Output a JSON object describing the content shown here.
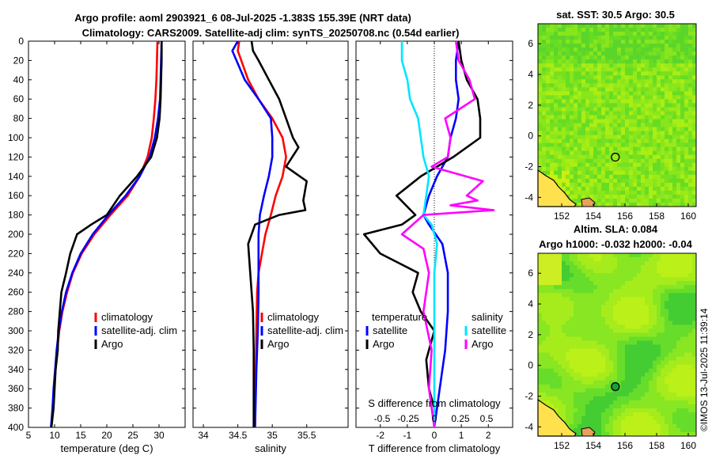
{
  "title_line1": "Argo profile: aoml 2903921_6 08-Jul-2025 -1.383S 155.39E (NRT data)",
  "title_line2": "Climatology: CARS2009. Satellite-adj clim: synTS_20250708.nc (0.54d earlier)",
  "depth_ticks": [
    "0",
    "20",
    "40",
    "60",
    "80",
    "100",
    "120",
    "140",
    "160",
    "180",
    "200",
    "220",
    "240",
    "260",
    "280",
    "300",
    "320",
    "340",
    "360",
    "380",
    "400"
  ],
  "colors": {
    "climatology": "#ff0000",
    "satellite": "#0000ff",
    "argo": "#000000",
    "sat_sal": "#00e5ff",
    "argo_sal": "#ff00ff"
  },
  "chart_data": [
    {
      "type": "line",
      "name": "temperature",
      "xlabel": "temperature (deg C)",
      "xlim": [
        5,
        35
      ],
      "ylim": [
        0,
        400
      ],
      "y_reversed": true,
      "xticks": [
        "5",
        "10",
        "15",
        "20",
        "25",
        "30"
      ],
      "legend": [
        "climatology",
        "satellite-adj. clim",
        "Argo"
      ],
      "series": [
        {
          "name": "climatology",
          "key": "climatology",
          "points": [
            [
              29.7,
              0
            ],
            [
              29.6,
              20
            ],
            [
              29.5,
              40
            ],
            [
              29.3,
              60
            ],
            [
              29.0,
              80
            ],
            [
              28.6,
              100
            ],
            [
              27.8,
              120
            ],
            [
              26.3,
              140
            ],
            [
              24.0,
              160
            ],
            [
              20.7,
              180
            ],
            [
              17.6,
              200
            ],
            [
              15.2,
              220
            ],
            [
              13.5,
              240
            ],
            [
              12.4,
              260
            ],
            [
              11.5,
              280
            ],
            [
              10.9,
              300
            ],
            [
              10.5,
              320
            ],
            [
              10.2,
              340
            ],
            [
              9.9,
              360
            ],
            [
              9.6,
              380
            ],
            [
              9.4,
              400
            ]
          ]
        },
        {
          "name": "satellite-adj. clim",
          "key": "satellite",
          "points": [
            [
              30.5,
              0
            ],
            [
              30.4,
              20
            ],
            [
              30.3,
              40
            ],
            [
              30.2,
              60
            ],
            [
              29.8,
              80
            ],
            [
              29.2,
              100
            ],
            [
              28.2,
              120
            ],
            [
              26.3,
              140
            ],
            [
              23.6,
              160
            ],
            [
              20.3,
              180
            ],
            [
              17.3,
              200
            ],
            [
              15.0,
              220
            ],
            [
              13.4,
              240
            ],
            [
              12.2,
              260
            ],
            [
              11.4,
              280
            ],
            [
              10.8,
              300
            ],
            [
              10.4,
              320
            ],
            [
              10.1,
              340
            ],
            [
              9.8,
              360
            ],
            [
              9.6,
              380
            ],
            [
              9.3,
              400
            ]
          ]
        },
        {
          "name": "Argo",
          "key": "argo",
          "points": [
            [
              30.5,
              0
            ],
            [
              30.5,
              20
            ],
            [
              30.4,
              40
            ],
            [
              30.3,
              60
            ],
            [
              30.1,
              80
            ],
            [
              29.6,
              100
            ],
            [
              28.5,
              120
            ],
            [
              25.8,
              140
            ],
            [
              22.5,
              160
            ],
            [
              20.0,
              180
            ],
            [
              17.0,
              190
            ],
            [
              14.3,
              200
            ],
            [
              13.0,
              220
            ],
            [
              12.2,
              240
            ],
            [
              11.3,
              260
            ],
            [
              11.0,
              280
            ],
            [
              10.7,
              300
            ],
            [
              10.6,
              320
            ],
            [
              10.2,
              340
            ],
            [
              10.0,
              360
            ],
            [
              9.8,
              380
            ],
            [
              9.4,
              400
            ]
          ]
        }
      ]
    },
    {
      "type": "line",
      "name": "salinity",
      "xlabel": "salinity",
      "xlim": [
        33.85,
        36.1
      ],
      "ylim": [
        0,
        400
      ],
      "y_reversed": true,
      "xticks": [
        "34",
        "34.5",
        "35",
        "35.5"
      ],
      "legend": [
        "climatology",
        "satellite-adj. clim",
        "Argo"
      ],
      "series": [
        {
          "name": "climatology",
          "key": "climatology",
          "points": [
            [
              34.52,
              0
            ],
            [
              34.5,
              10
            ],
            [
              34.55,
              20
            ],
            [
              34.65,
              40
            ],
            [
              34.8,
              60
            ],
            [
              35.0,
              80
            ],
            [
              35.15,
              100
            ],
            [
              35.2,
              120
            ],
            [
              35.15,
              140
            ],
            [
              35.05,
              160
            ],
            [
              34.98,
              180
            ],
            [
              34.9,
              200
            ],
            [
              34.85,
              220
            ],
            [
              34.8,
              240
            ],
            [
              34.78,
              260
            ],
            [
              34.77,
              300
            ],
            [
              34.76,
              340
            ],
            [
              34.75,
              400
            ]
          ]
        },
        {
          "name": "satellite-adj. clim",
          "key": "satellite",
          "points": [
            [
              34.5,
              0
            ],
            [
              34.42,
              10
            ],
            [
              34.48,
              20
            ],
            [
              34.6,
              40
            ],
            [
              34.8,
              60
            ],
            [
              34.98,
              80
            ],
            [
              35.0,
              100
            ],
            [
              35.0,
              120
            ],
            [
              34.95,
              140
            ],
            [
              34.88,
              160
            ],
            [
              34.82,
              180
            ],
            [
              34.8,
              200
            ],
            [
              34.8,
              220
            ],
            [
              34.8,
              260
            ],
            [
              34.79,
              300
            ],
            [
              34.77,
              340
            ],
            [
              34.75,
              400
            ]
          ]
        },
        {
          "name": "Argo",
          "key": "argo",
          "points": [
            [
              34.7,
              0
            ],
            [
              34.72,
              10
            ],
            [
              34.8,
              20
            ],
            [
              34.95,
              40
            ],
            [
              35.1,
              60
            ],
            [
              35.2,
              80
            ],
            [
              35.3,
              100
            ],
            [
              35.38,
              110
            ],
            [
              35.2,
              130
            ],
            [
              35.5,
              145
            ],
            [
              35.45,
              165
            ],
            [
              35.48,
              175
            ],
            [
              35.1,
              180
            ],
            [
              34.75,
              190
            ],
            [
              34.65,
              210
            ],
            [
              34.68,
              240
            ],
            [
              34.72,
              280
            ],
            [
              34.73,
              320
            ],
            [
              34.73,
              360
            ],
            [
              34.73,
              400
            ]
          ]
        }
      ]
    },
    {
      "type": "line",
      "name": "difference",
      "xlabel": "T difference from climatology",
      "xlim": [
        -2.9,
        2.9
      ],
      "ylim": [
        0,
        400
      ],
      "y_reversed": true,
      "xticks": [
        "-2",
        "-1",
        "0",
        "1",
        "2"
      ],
      "top_axis_label": "S difference from climatology",
      "top_ticks": [
        "-0.5",
        "-0.25",
        "0",
        "0.25",
        "0.5"
      ],
      "legend_temperature": {
        "title": "temperature",
        "items": [
          "satellite",
          "Argo"
        ]
      },
      "legend_salinity": {
        "title": "salinity",
        "items": [
          "satellite",
          "Argo"
        ]
      },
      "series": [
        {
          "name": "temperature satellite",
          "key": "satellite",
          "points": [
            [
              0.9,
              0
            ],
            [
              0.8,
              20
            ],
            [
              0.8,
              40
            ],
            [
              0.9,
              60
            ],
            [
              0.8,
              80
            ],
            [
              0.6,
              100
            ],
            [
              0.5,
              120
            ],
            [
              0.1,
              140
            ],
            [
              -0.2,
              160
            ],
            [
              -0.4,
              180
            ],
            [
              -0.2,
              190
            ],
            [
              0.3,
              210
            ],
            [
              0.5,
              240
            ],
            [
              0.5,
              280
            ],
            [
              0.4,
              320
            ],
            [
              0.2,
              360
            ],
            [
              0.0,
              400
            ]
          ]
        },
        {
          "name": "temperature Argo",
          "key": "argo",
          "points": [
            [
              0.9,
              0
            ],
            [
              1.0,
              20
            ],
            [
              1.2,
              40
            ],
            [
              1.6,
              60
            ],
            [
              1.7,
              80
            ],
            [
              1.7,
              100
            ],
            [
              0.7,
              120
            ],
            [
              -0.5,
              140
            ],
            [
              -1.4,
              160
            ],
            [
              -0.7,
              180
            ],
            [
              -1.2,
              190
            ],
            [
              -2.6,
              200
            ],
            [
              -2.0,
              220
            ],
            [
              -0.6,
              240
            ],
            [
              -0.8,
              260
            ],
            [
              -0.5,
              280
            ],
            [
              0.0,
              300
            ],
            [
              -0.3,
              330
            ],
            [
              -0.2,
              360
            ],
            [
              0.0,
              380
            ],
            [
              0.0,
              400
            ]
          ]
        },
        {
          "name": "salinity satellite",
          "key": "sat_sal",
          "points": [
            [
              -1.2,
              0
            ],
            [
              -1.2,
              20
            ],
            [
              -1.0,
              40
            ],
            [
              -0.9,
              60
            ],
            [
              -0.6,
              80
            ],
            [
              -0.5,
              100
            ],
            [
              -0.4,
              120
            ],
            [
              -0.2,
              140
            ],
            [
              -0.3,
              160
            ],
            [
              -0.4,
              180
            ],
            [
              -0.1,
              190
            ],
            [
              0.1,
              210
            ],
            [
              0.0,
              240
            ],
            [
              0.0,
              280
            ],
            [
              0.0,
              320
            ],
            [
              0.0,
              360
            ],
            [
              0.0,
              400
            ]
          ]
        },
        {
          "name": "salinity Argo",
          "key": "argo_sal",
          "points": [
            [
              0.8,
              0
            ],
            [
              0.9,
              20
            ],
            [
              1.3,
              40
            ],
            [
              1.5,
              60
            ],
            [
              0.4,
              80
            ],
            [
              0.6,
              100
            ],
            [
              0.5,
              120
            ],
            [
              -0.1,
              130
            ],
            [
              1.8,
              145
            ],
            [
              1.2,
              160
            ],
            [
              1.6,
              165
            ],
            [
              0.6,
              170
            ],
            [
              2.2,
              175
            ],
            [
              -0.4,
              180
            ],
            [
              -1.2,
              200
            ],
            [
              -0.4,
              215
            ],
            [
              -0.2,
              240
            ],
            [
              -0.4,
              280
            ],
            [
              -0.1,
              320
            ],
            [
              -0.2,
              360
            ],
            [
              0.0,
              400
            ]
          ]
        }
      ]
    },
    {
      "type": "heatmap",
      "name": "sst_map",
      "title": "sat. SST: 30.5 Argo: 30.5",
      "xlim": [
        150.5,
        160.5
      ],
      "ylim": [
        -4.6,
        7.3
      ],
      "xticks": [
        "152",
        "154",
        "156",
        "158",
        "160"
      ],
      "yticks": [
        "-4",
        "-2",
        "0",
        "2",
        "4",
        "6"
      ],
      "argo_position": [
        155.39,
        -1.383
      ]
    },
    {
      "type": "heatmap",
      "name": "sla_map",
      "title": "Altim. SLA: 0.084",
      "subtitle": "Argo h1000: -0.032 h2000: -0.04",
      "xlim": [
        150.5,
        160.5
      ],
      "ylim": [
        -4.6,
        7.3
      ],
      "xticks": [
        "152",
        "154",
        "156",
        "158",
        "160"
      ],
      "yticks": [
        "-4",
        "-2",
        "0",
        "2",
        "4",
        "6"
      ],
      "argo_position": [
        155.39,
        -1.383
      ]
    }
  ],
  "credit": "©IMOS 13-Jul-2025 11:39:14"
}
